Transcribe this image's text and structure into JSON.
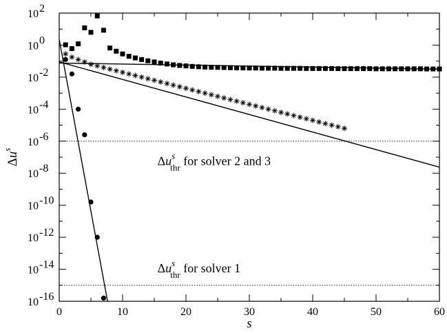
{
  "chart_data": {
    "type": "scatter",
    "title": "",
    "xlabel": "s",
    "ylabel": "Δu^s",
    "xlim": [
      0,
      60
    ],
    "ylim_log10": [
      -16,
      2
    ],
    "yscale": "log",
    "grid": false,
    "x_ticks": [
      0,
      10,
      20,
      30,
      40,
      50,
      60
    ],
    "y_ticks_exponent": [
      2,
      0,
      -2,
      -4,
      -6,
      -8,
      -10,
      -12,
      -14,
      -16
    ],
    "y_tick_base": "10",
    "series": [
      {
        "marker": "square",
        "x": [
          1,
          2,
          3,
          4,
          5,
          6,
          7,
          8,
          9,
          10,
          11,
          12,
          13,
          14,
          15,
          16,
          17,
          18,
          19,
          20,
          21,
          22,
          23,
          24,
          25,
          26,
          27,
          28,
          29,
          30,
          31,
          32,
          33,
          34,
          35,
          36,
          37,
          38,
          39,
          40,
          41,
          42,
          43,
          44,
          45,
          46,
          47,
          48,
          49,
          50,
          51,
          52,
          53,
          54,
          55,
          56,
          57,
          58,
          59,
          60
        ],
        "log10_y": [
          0.02,
          -0.22,
          0.08,
          1.08,
          0.8,
          1.82,
          0.93,
          -0.18,
          -0.38,
          -0.55,
          -0.7,
          -0.8,
          -0.9,
          -0.98,
          -1.05,
          -1.12,
          -1.18,
          -1.23,
          -1.27,
          -1.3,
          -1.33,
          -1.35,
          -1.37,
          -1.38,
          -1.39,
          -1.4,
          -1.41,
          -1.42,
          -1.42,
          -1.43,
          -1.43,
          -1.44,
          -1.44,
          -1.44,
          -1.45,
          -1.45,
          -1.45,
          -1.45,
          -1.46,
          -1.46,
          -1.46,
          -1.46,
          -1.46,
          -1.47,
          -1.47,
          -1.47,
          -1.47,
          -1.47,
          -1.47,
          -1.48,
          -1.48,
          -1.48,
          -1.48,
          -1.48,
          -1.48,
          -1.48,
          -1.48,
          -1.49,
          -1.49,
          -1.49
        ]
      },
      {
        "marker": "asterisk",
        "x": [
          1,
          2,
          3,
          4,
          5,
          6,
          7,
          8,
          9,
          10,
          11,
          12,
          13,
          14,
          15,
          16,
          17,
          18,
          19,
          20,
          21,
          22,
          23,
          24,
          25,
          26,
          27,
          28,
          29,
          30,
          31,
          32,
          33,
          34,
          35,
          36,
          37,
          38,
          39,
          40,
          41,
          42,
          43,
          44,
          45
        ],
        "log10_y": [
          -0.55,
          -0.75,
          -0.9,
          -1.05,
          -1.2,
          -1.3,
          -1.4,
          -1.5,
          -1.6,
          -1.7,
          -1.8,
          -1.9,
          -2.0,
          -2.1,
          -2.2,
          -2.3,
          -2.4,
          -2.5,
          -2.6,
          -2.7,
          -2.8,
          -2.9,
          -3.0,
          -3.1,
          -3.2,
          -3.3,
          -3.4,
          -3.5,
          -3.6,
          -3.7,
          -3.8,
          -3.9,
          -4.0,
          -4.1,
          -4.2,
          -4.3,
          -4.4,
          -4.5,
          -4.6,
          -4.7,
          -4.8,
          -4.9,
          -5.0,
          -5.1,
          -5.2
        ]
      },
      {
        "marker": "circle",
        "x": [
          1,
          2,
          3,
          4,
          5,
          6,
          7
        ],
        "log10_y": [
          -0.9,
          -1.8,
          -4.0,
          -5.6,
          -9.8,
          -12.0,
          -15.8
        ]
      }
    ],
    "fit_lines": [
      {
        "x": [
          0,
          60
        ],
        "log10_y": [
          -1.12,
          -1.5
        ]
      },
      {
        "x": [
          0,
          60
        ],
        "log10_y": [
          -1.05,
          -7.62
        ]
      },
      {
        "x": [
          0,
          8
        ],
        "log10_y": [
          0.35,
          -16.8
        ]
      }
    ],
    "thresholds": [
      {
        "log10_y": -6,
        "label_text": " for solver 2 and 3",
        "label_at_x": 15.5,
        "label_at_log10_y": -7.5
      },
      {
        "log10_y": -15,
        "label_text": " for solver 1",
        "label_at_x": 15.5,
        "label_at_log10_y": -14.2
      }
    ],
    "threshold_symbol": {
      "delta": "Δ",
      "u": "u",
      "sup": "s",
      "sub": "thr"
    }
  }
}
